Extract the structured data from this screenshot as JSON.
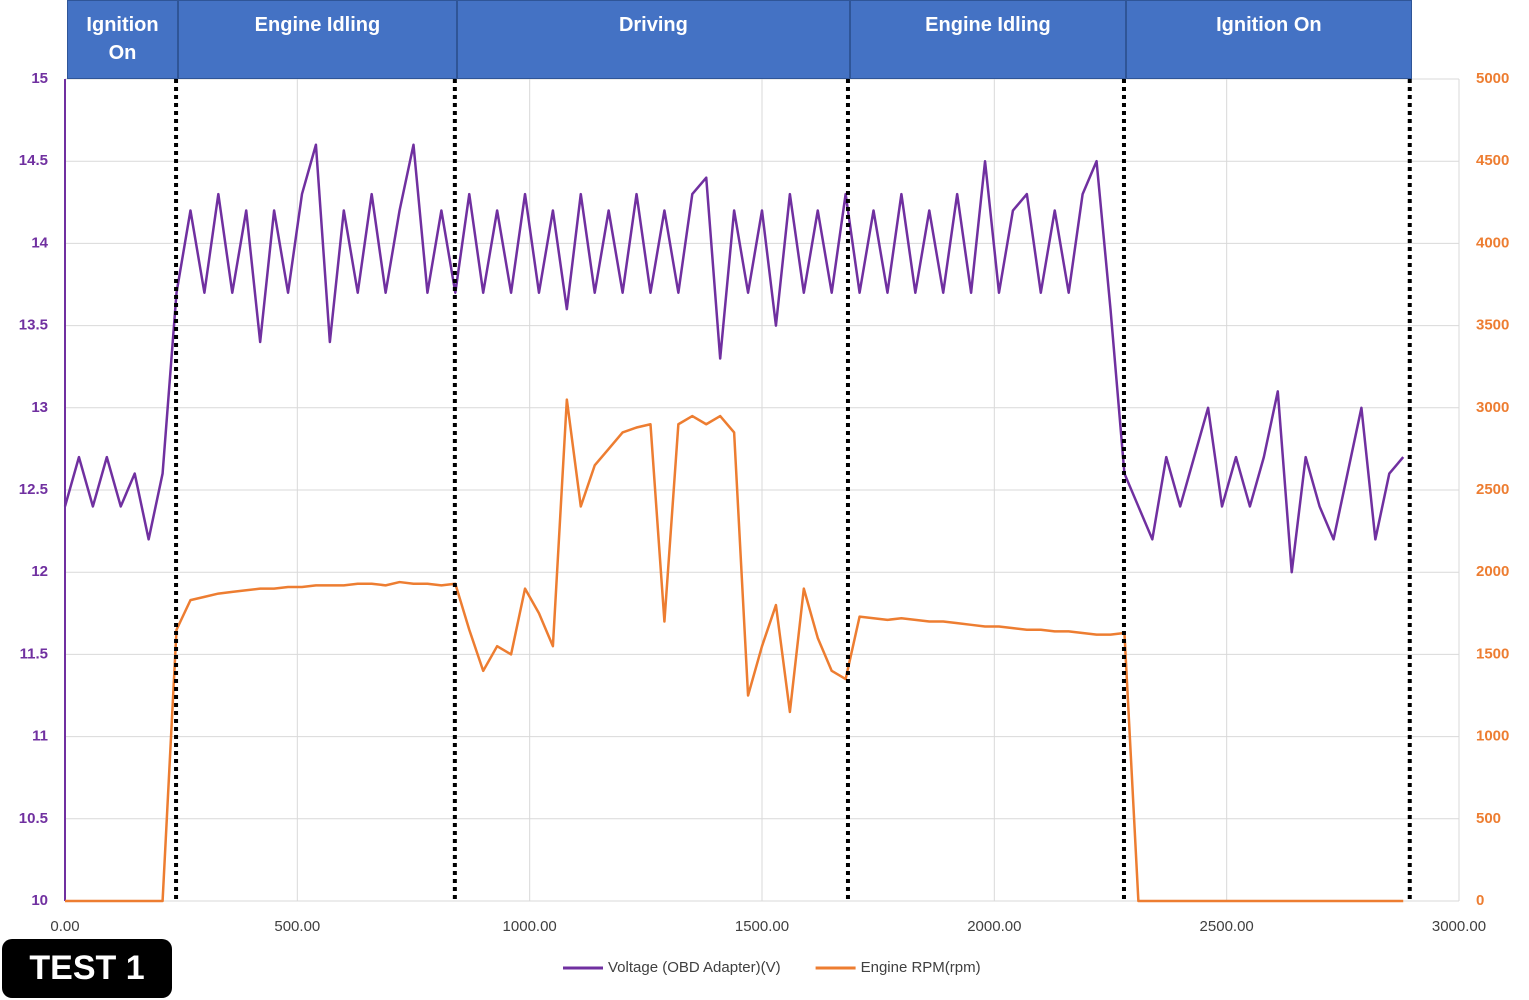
{
  "badge": "TEST 1",
  "chart_data": {
    "type": "line",
    "x": [
      0,
      30,
      60,
      90,
      120,
      150,
      180,
      210,
      240,
      270,
      300,
      330,
      360,
      390,
      420,
      450,
      480,
      510,
      540,
      570,
      600,
      630,
      660,
      690,
      720,
      750,
      780,
      810,
      840,
      870,
      900,
      930,
      960,
      990,
      1020,
      1050,
      1080,
      1110,
      1140,
      1170,
      1200,
      1230,
      1260,
      1290,
      1320,
      1350,
      1380,
      1410,
      1440,
      1470,
      1500,
      1530,
      1560,
      1590,
      1620,
      1650,
      1680,
      1710,
      1740,
      1770,
      1800,
      1830,
      1860,
      1890,
      1920,
      1950,
      1980,
      2010,
      2040,
      2070,
      2100,
      2130,
      2160,
      2190,
      2220,
      2250,
      2280,
      2310,
      2340,
      2370,
      2400,
      2430,
      2460,
      2490,
      2520,
      2550,
      2580,
      2610,
      2640,
      2670,
      2700,
      2730,
      2760,
      2790,
      2820,
      2850,
      2880
    ],
    "series": [
      {
        "name": "Voltage (OBD Adapter)(V)",
        "color": "#7030a0",
        "axis": "y",
        "values": [
          12.4,
          12.7,
          12.4,
          12.7,
          12.4,
          12.6,
          12.2,
          12.6,
          13.7,
          14.2,
          13.7,
          14.3,
          13.7,
          14.2,
          13.4,
          14.2,
          13.7,
          14.3,
          14.6,
          13.4,
          14.2,
          13.7,
          14.3,
          13.7,
          14.2,
          14.6,
          13.7,
          14.2,
          13.7,
          14.3,
          13.7,
          14.2,
          13.7,
          14.3,
          13.7,
          14.2,
          13.6,
          14.3,
          13.7,
          14.2,
          13.7,
          14.3,
          13.7,
          14.2,
          13.7,
          14.3,
          14.4,
          13.3,
          14.2,
          13.7,
          14.2,
          13.5,
          14.3,
          13.7,
          14.2,
          13.7,
          14.3,
          13.7,
          14.2,
          13.7,
          14.3,
          13.7,
          14.2,
          13.7,
          14.3,
          13.7,
          14.5,
          13.7,
          14.2,
          14.3,
          13.7,
          14.2,
          13.7,
          14.3,
          14.5,
          13.6,
          12.6,
          12.4,
          12.2,
          12.7,
          12.4,
          12.7,
          13.0,
          12.4,
          12.7,
          12.4,
          12.7,
          13.1,
          12.0,
          12.7,
          12.4,
          12.2,
          12.6,
          13.0,
          12.2,
          12.6,
          12.7
        ]
      },
      {
        "name": "Engine RPM(rpm)",
        "color": "#ed7d31",
        "axis": "y2",
        "values": [
          0,
          0,
          0,
          0,
          0,
          0,
          0,
          0,
          1650,
          1830,
          1850,
          1870,
          1880,
          1890,
          1900,
          1900,
          1910,
          1910,
          1920,
          1920,
          1920,
          1930,
          1930,
          1920,
          1940,
          1930,
          1930,
          1920,
          1930,
          1650,
          1400,
          1550,
          1500,
          1900,
          1750,
          1550,
          3050,
          2400,
          2650,
          2750,
          2850,
          2880,
          2900,
          1700,
          2900,
          2950,
          2900,
          2950,
          2850,
          1250,
          1550,
          1800,
          1150,
          1900,
          1600,
          1400,
          1350,
          1730,
          1720,
          1710,
          1720,
          1710,
          1700,
          1700,
          1690,
          1680,
          1670,
          1670,
          1660,
          1650,
          1650,
          1640,
          1640,
          1630,
          1620,
          1620,
          1630,
          0,
          0,
          0,
          0,
          0,
          0,
          0,
          0,
          0,
          0,
          0,
          0,
          0,
          0,
          0,
          0,
          0,
          0,
          0,
          0
        ]
      }
    ],
    "xlim": [
      0,
      3000
    ],
    "xticks": [
      {
        "value": 0,
        "label": "0.00"
      },
      {
        "value": 500,
        "label": "500.00"
      },
      {
        "value": 1000,
        "label": "1000.00"
      },
      {
        "value": 1500,
        "label": "1500.00"
      },
      {
        "value": 2000,
        "label": "2000.00"
      },
      {
        "value": 2500,
        "label": "2500.00"
      },
      {
        "value": 3000,
        "label": "3000.00"
      }
    ],
    "ylim": [
      10,
      15
    ],
    "yticks": [
      10,
      10.5,
      11,
      11.5,
      12,
      12.5,
      13,
      13.5,
      14,
      14.5,
      15
    ],
    "y2lim": [
      0,
      5000
    ],
    "y2ticks": [
      0,
      500,
      1000,
      1500,
      2000,
      2500,
      3000,
      3500,
      4000,
      4500,
      5000
    ],
    "grid": true,
    "legend": "bottom",
    "phases": [
      {
        "label": "Ignition On",
        "start": 0,
        "end": 239
      },
      {
        "label": "Engine Idling",
        "start": 239,
        "end": 839
      },
      {
        "label": "Driving",
        "start": 839,
        "end": 1685
      },
      {
        "label": "Engine Idling",
        "start": 1685,
        "end": 2279
      },
      {
        "label": "Ignition On",
        "start": 2279,
        "end": 2894
      }
    ]
  }
}
